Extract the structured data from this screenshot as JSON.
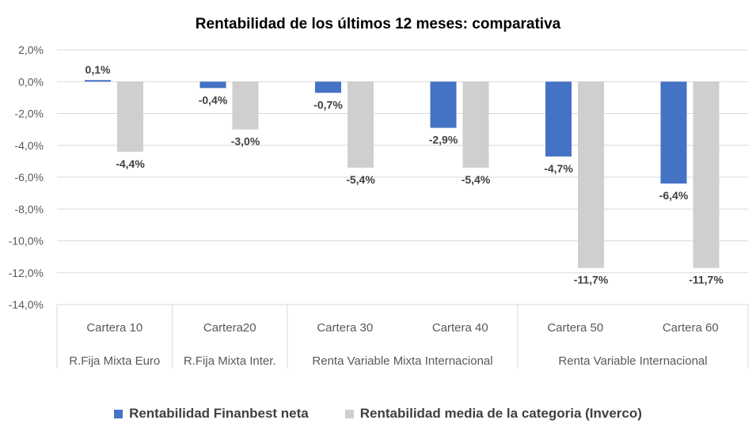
{
  "chart_data": {
    "type": "bar",
    "title": "Rentabilidad de los últimos 12 meses: comparativa",
    "categories": [
      "Cartera 10",
      "Cartera20",
      "Cartera 30",
      "Cartera 40",
      "Cartera 50",
      "Cartera 60"
    ],
    "groups": [
      {
        "label": "R.Fija Mixta Euro",
        "categories": 1
      },
      {
        "label": "R.Fija Mixta Inter.",
        "categories": 1
      },
      {
        "label": "Renta Variable Mixta Internacional",
        "categories": 2
      },
      {
        "label": "Renta Variable Internacional",
        "categories": 2
      }
    ],
    "series": [
      {
        "name": "Rentabilidad Finanbest neta",
        "color": "#4472C4",
        "values": [
          0.1,
          -0.4,
          -0.7,
          -2.9,
          -4.7,
          -6.4
        ],
        "labels": [
          "0,1%",
          "-0,4%",
          "-0,7%",
          "-2,9%",
          "-4,7%",
          "-6,4%"
        ]
      },
      {
        "name": "Rentabilidad media de la categoria (Inverco)",
        "color": "#D0CECE",
        "values": [
          -4.4,
          -3.0,
          -5.4,
          -5.4,
          -11.7,
          -11.7
        ],
        "labels": [
          "-4,4%",
          "-3,0%",
          "-5,4%",
          "-5,4%",
          "-11,7%",
          "-11,7%"
        ]
      }
    ],
    "ylim": [
      -14,
      2
    ],
    "yticks": [
      2,
      0,
      -2,
      -4,
      -6,
      -8,
      -10,
      -12,
      -14
    ],
    "ytick_labels": [
      "2,0%",
      "0,0%",
      "-2,0%",
      "-4,0%",
      "-6,0%",
      "-8,0%",
      "-10,0%",
      "-12,0%",
      "-14,0%"
    ],
    "grid": true,
    "legend": "bottom"
  }
}
